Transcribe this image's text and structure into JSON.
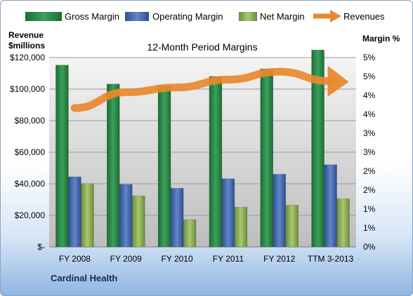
{
  "chart_data": {
    "type": "bar",
    "title": "12-Month Period Margins",
    "company": "Cardinal Health",
    "y_left_label_line1": "Revenue",
    "y_left_label_line2": "$millions",
    "y_right_label": "Margin %",
    "categories": [
      "FY 2008",
      "FY 2009",
      "FY 2010",
      "FY 2011",
      "FY 2012",
      "TTM 3-2013"
    ],
    "left_ticks": [
      "$-",
      "$20,000",
      "$40,000",
      "$60,000",
      "$80,000",
      "$100,000",
      "$120,000"
    ],
    "right_ticks": [
      "0%",
      "1%",
      "1%",
      "2%",
      "2%",
      "3%",
      "3%",
      "4%",
      "4%",
      "5%",
      "5%"
    ],
    "ylim_left": [
      0,
      120000
    ],
    "ylim_right": [
      0,
      5
    ],
    "grid": "horizontal",
    "legend_position": "top",
    "series": [
      {
        "name": "Gross Margin",
        "axis": "right",
        "color": "#2e8b4a",
        "values": [
          4.8,
          4.3,
          4.25,
          4.5,
          4.7,
          5.2
        ]
      },
      {
        "name": "Operating Margin",
        "axis": "right",
        "color": "#4f72b8",
        "values": [
          1.85,
          1.65,
          1.55,
          1.8,
          1.92,
          2.17
        ]
      },
      {
        "name": "Net Margin",
        "axis": "right",
        "color": "#8db25a",
        "values": [
          1.67,
          1.35,
          0.72,
          1.05,
          1.1,
          1.27
        ]
      },
      {
        "name": "Revenues",
        "axis": "left",
        "type": "line",
        "color": "#e8892e",
        "values": [
          88000,
          98000,
          101000,
          106000,
          111000,
          105000
        ]
      }
    ]
  }
}
